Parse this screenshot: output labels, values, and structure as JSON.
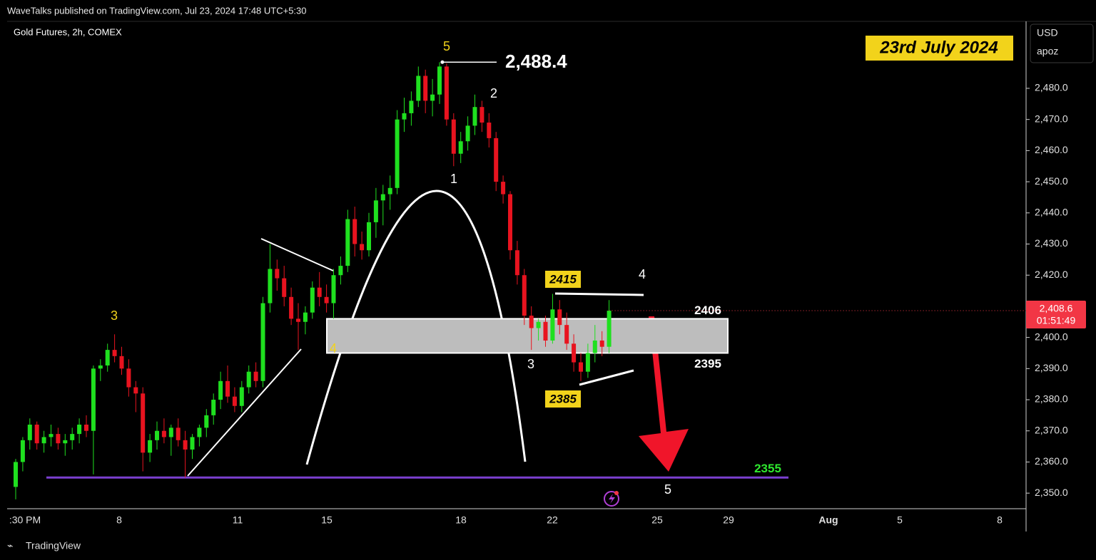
{
  "header": {
    "publisher": "WaveTalks published on TradingView.com, Jul 23, 2024 17:48 UTC+5:30"
  },
  "footer": {
    "brand": "TradingView"
  },
  "chart_data": {
    "type": "candlestick",
    "title": "Gold Futures, 2h, COMEX",
    "currency": "USD",
    "indicator": "apoz",
    "x_labels": [
      ":30 PM",
      "8",
      "11",
      "15",
      "18",
      "22",
      "25",
      "29",
      "Aug",
      "5",
      "8"
    ],
    "open": [
      2352,
      2360,
      2367,
      2372,
      2366,
      2368,
      2369,
      2366,
      2367,
      2369,
      2372,
      2370,
      2390,
      2391,
      2396,
      2394,
      2390,
      2384,
      2382,
      2363,
      2367,
      2370,
      2368,
      2371,
      2367,
      2364,
      2368,
      2371,
      2375,
      2380,
      2386,
      2381,
      2378,
      2384,
      2389,
      2386,
      2411,
      2422,
      2419,
      2413,
      2406,
      2405,
      2408,
      2416,
      2413,
      2411,
      2420,
      2423,
      2438,
      2430,
      2428,
      2437,
      2444,
      2446,
      2448,
      2470,
      2472,
      2476,
      2484,
      2476,
      2478,
      2487,
      2470,
      2459,
      2463,
      2468,
      2474,
      2469,
      2464,
      2450,
      2446,
      2428,
      2420,
      2407,
      2403,
      2405,
      2399,
      2409,
      2404,
      2398,
      2392,
      2389,
      2395,
      2399,
      2397
    ],
    "high": [
      2361,
      2368,
      2374,
      2373,
      2370,
      2372,
      2371,
      2369,
      2371,
      2374,
      2375,
      2391,
      2393,
      2398,
      2401,
      2397,
      2393,
      2386,
      2384,
      2369,
      2373,
      2374,
      2372,
      2374,
      2370,
      2369,
      2372,
      2377,
      2382,
      2389,
      2391,
      2384,
      2386,
      2391,
      2392,
      2413,
      2430,
      2425,
      2423,
      2416,
      2411,
      2410,
      2418,
      2421,
      2417,
      2422,
      2426,
      2441,
      2442,
      2434,
      2440,
      2448,
      2449,
      2452,
      2473,
      2477,
      2479,
      2487,
      2486,
      2483,
      2488.4,
      2488,
      2472,
      2466,
      2471,
      2478,
      2476,
      2472,
      2466,
      2452,
      2447,
      2431,
      2422,
      2410,
      2406,
      2407,
      2414,
      2412,
      2408,
      2401,
      2395,
      2398,
      2404,
      2402,
      2412
    ],
    "low": [
      2348,
      2357,
      2364,
      2364,
      2363,
      2365,
      2364,
      2362,
      2364,
      2366,
      2368,
      2356,
      2386,
      2389,
      2392,
      2388,
      2381,
      2376,
      2357,
      2360,
      2364,
      2366,
      2362,
      2365,
      2355,
      2361,
      2365,
      2368,
      2372,
      2377,
      2379,
      2376,
      2376,
      2382,
      2384,
      2384,
      2408,
      2415,
      2410,
      2404,
      2396,
      2401,
      2406,
      2410,
      2408,
      2406,
      2417,
      2421,
      2426,
      2425,
      2426,
      2432,
      2436,
      2441,
      2446,
      2466,
      2468,
      2474,
      2472,
      2471,
      2475,
      2468,
      2455,
      2456,
      2460,
      2465,
      2466,
      2461,
      2447,
      2443,
      2425,
      2417,
      2404,
      2396,
      2399,
      2397,
      2398,
      2401,
      2396,
      2389,
      2386,
      2387,
      2392,
      2394,
      2395
    ],
    "close": [
      2360,
      2367,
      2372,
      2366,
      2368,
      2369,
      2366,
      2367,
      2369,
      2372,
      2370,
      2390,
      2391,
      2396,
      2394,
      2390,
      2384,
      2382,
      2363,
      2367,
      2370,
      2368,
      2371,
      2367,
      2364,
      2368,
      2371,
      2375,
      2380,
      2386,
      2381,
      2378,
      2384,
      2389,
      2386,
      2411,
      2422,
      2419,
      2413,
      2406,
      2405,
      2408,
      2416,
      2413,
      2411,
      2420,
      2423,
      2438,
      2430,
      2428,
      2437,
      2444,
      2446,
      2448,
      2470,
      2472,
      2476,
      2484,
      2476,
      2478,
      2487,
      2470,
      2459,
      2463,
      2468,
      2474,
      2469,
      2464,
      2450,
      2446,
      2428,
      2420,
      2407,
      2403,
      2405,
      2399,
      2409,
      2404,
      2398,
      2392,
      2389,
      2395,
      2399,
      2397,
      2408.6
    ],
    "up_color": "#1fe01f",
    "down_color": "#e8131f",
    "ylim": [
      2345,
      2501.5
    ],
    "yticks": [
      {
        "value": 2350,
        "label": "2,350.0"
      },
      {
        "value": 2360,
        "label": "2,360.0"
      },
      {
        "value": 2370,
        "label": "2,370.0"
      },
      {
        "value": 2380,
        "label": "2,380.0"
      },
      {
        "value": 2390,
        "label": "2,390.0"
      },
      {
        "value": 2400,
        "label": "2,400.0"
      },
      {
        "value": 2410,
        "label": "2,410.0"
      },
      {
        "value": 2420,
        "label": "2,420.0"
      },
      {
        "value": 2430,
        "label": "2,430.0"
      },
      {
        "value": 2440,
        "label": "2,440.0"
      },
      {
        "value": 2450,
        "label": "2,450.0"
      },
      {
        "value": 2460,
        "label": "2,460.0"
      },
      {
        "value": 2470,
        "label": "2,470.0"
      },
      {
        "value": 2480,
        "label": "2,480.0"
      }
    ],
    "last_price": {
      "value": 2408.6,
      "label": "2,408.6"
    },
    "countdown": "01:51:49",
    "annotations": {
      "date_label": "23rd July 2024",
      "peak": {
        "value": 2488.4,
        "label": "2,488.4"
      },
      "zone": {
        "top": 2406,
        "bottom": 2395
      },
      "target": {
        "value": 2355,
        "line_color": "#7b3fd0",
        "label_color": "#2ee82e"
      },
      "triangle_top": 2415,
      "triangle_bottom": 2385,
      "wave_labels": [
        {
          "text": "5",
          "color": "#f2d31b"
        },
        {
          "text": "2",
          "color": "#ffffff"
        },
        {
          "text": "1",
          "color": "#ffffff"
        },
        {
          "text": "3",
          "color": "#f2d31b"
        },
        {
          "text": "4",
          "color": "#f2d31b"
        },
        {
          "text": "3",
          "color": "#ffffff"
        },
        {
          "text": "4",
          "color": "#ffffff"
        },
        {
          "text": "5",
          "color": "#ffffff"
        }
      ]
    }
  }
}
